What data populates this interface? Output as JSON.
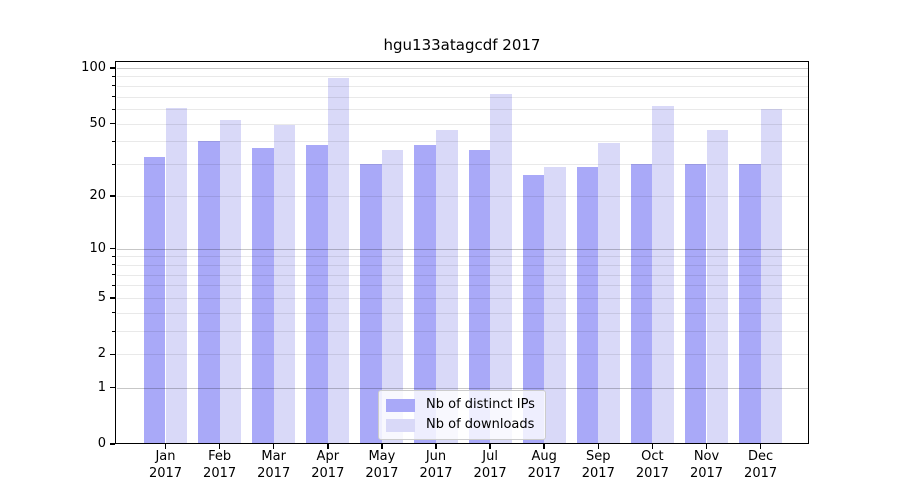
{
  "chart_data": {
    "type": "bar",
    "title": "hgu133atagcdf 2017",
    "categories": [
      "Jan 2017",
      "Feb 2017",
      "Mar 2017",
      "Apr 2017",
      "May 2017",
      "Jun 2017",
      "Jul 2017",
      "Aug 2017",
      "Sep 2017",
      "Oct 2017",
      "Nov 2017",
      "Dec 2017"
    ],
    "month_labels": [
      "Jan",
      "Feb",
      "Mar",
      "Apr",
      "May",
      "Jun",
      "Jul",
      "Aug",
      "Sep",
      "Oct",
      "Nov",
      "Dec"
    ],
    "year_label": "2017",
    "series": [
      {
        "name": "Nb of distinct IPs",
        "color": "#a9a9f8",
        "values": [
          33,
          40,
          37,
          38,
          30,
          38,
          36,
          26,
          29,
          30,
          30,
          30
        ]
      },
      {
        "name": "Nb of downloads",
        "color": "#d9d9f8",
        "values": [
          61,
          52,
          49,
          88,
          36,
          46,
          72,
          29,
          39,
          62,
          46,
          60
        ]
      }
    ],
    "xlabel": "",
    "ylabel": "",
    "y_scale": "log1p",
    "y_ticks": [
      0,
      1,
      2,
      5,
      10,
      20,
      50,
      100
    ],
    "y_minor_ticks": [
      3,
      4,
      6,
      7,
      8,
      9,
      30,
      40,
      60,
      70,
      80,
      90
    ],
    "y_gridlines_light": [
      2,
      3,
      4,
      5,
      6,
      7,
      8,
      9,
      20,
      30,
      40,
      50,
      60,
      70,
      80,
      90
    ],
    "y_gridlines_dark": [
      1,
      10,
      100
    ],
    "ylim": [
      0,
      109
    ],
    "grid": true,
    "legend_position": "lower center"
  }
}
